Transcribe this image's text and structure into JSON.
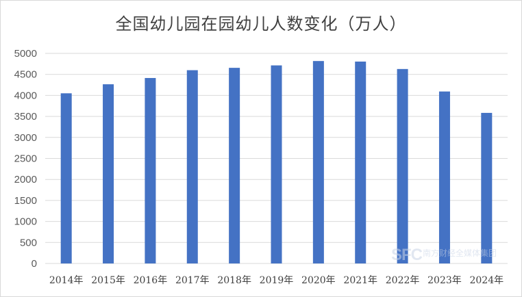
{
  "chart_data": {
    "type": "bar",
    "title": "全国幼儿园在园幼儿人数变化（万人）",
    "categories": [
      "2014年",
      "2015年",
      "2016年",
      "2017年",
      "2018年",
      "2019年",
      "2020年",
      "2021年",
      "2022年",
      "2023年",
      "2024年"
    ],
    "values": [
      4050,
      4265,
      4414,
      4600,
      4656,
      4714,
      4818,
      4805,
      4628,
      4093,
      3584
    ],
    "xlabel": "",
    "ylabel": "",
    "ylim": [
      0,
      5000
    ],
    "yticks": [
      0,
      500,
      1000,
      1500,
      2000,
      2500,
      3000,
      3500,
      4000,
      4500,
      5000
    ],
    "grid": true,
    "legend": "none",
    "bar_color": "#4472c4",
    "grid_color": "#d9d9d9"
  },
  "watermark": {
    "logo": "SFC",
    "text": "南方财经全媒体集团"
  }
}
